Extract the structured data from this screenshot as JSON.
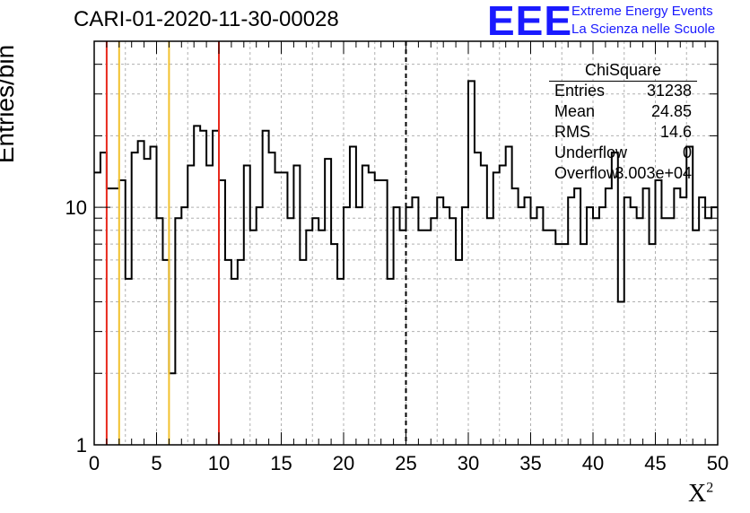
{
  "header": {
    "title": "CARI-01-2020-11-30-00028",
    "logo_mark": "EEE",
    "logo_line1": "Extreme Energy Events",
    "logo_line2": "La Scienza nelle Scuole"
  },
  "colors": {
    "logo": "#1a1aff",
    "red_line": "#e8291c",
    "yellow_line": "#f2c12e",
    "histogram": "#000000",
    "grid": "#b0b0b0"
  },
  "stats": {
    "title": "ChiSquare",
    "rows": [
      {
        "key": "Entries",
        "value": "31238"
      },
      {
        "key": "Mean",
        "value": "24.85"
      },
      {
        "key": "RMS",
        "value": "14.6"
      },
      {
        "key": "Underflow",
        "value": "0"
      },
      {
        "key": "Overflow",
        "value": "3.003e+04"
      }
    ]
  },
  "chart_data": {
    "type": "histogram",
    "xlabel": "X",
    "xlabel_sup": "2",
    "ylabel": "Entries/bin",
    "xlim": [
      0,
      50
    ],
    "ylim": [
      1,
      50
    ],
    "yscale": "log",
    "grid": true,
    "bin_width": 0.5,
    "x_ticks": [
      "0",
      "5",
      "10",
      "15",
      "20",
      "25",
      "30",
      "35",
      "40",
      "45",
      "50"
    ],
    "x_tick_values": [
      0,
      5,
      10,
      15,
      20,
      25,
      30,
      35,
      40,
      45,
      50
    ],
    "y_ticks": [
      "1",
      "10"
    ],
    "y_tick_values": [
      1,
      10
    ],
    "values": [
      14,
      17,
      12,
      12,
      13,
      5,
      17,
      19,
      16,
      18,
      9,
      6,
      2,
      9,
      10,
      15,
      22,
      21,
      15,
      21,
      13,
      6,
      5,
      6,
      15,
      8,
      10,
      21,
      17,
      14,
      14,
      9,
      15,
      6,
      8,
      9,
      8,
      16,
      7,
      5,
      10,
      18,
      10,
      15,
      14,
      13,
      13,
      5,
      10,
      8,
      10,
      11,
      8,
      8,
      9,
      11,
      10,
      9,
      6,
      10,
      34,
      17,
      15,
      9,
      14,
      15,
      18,
      12,
      10,
      11,
      9,
      10,
      8,
      8,
      7,
      7,
      11,
      12,
      7,
      10,
      9,
      10,
      12,
      17,
      4,
      11,
      10,
      9,
      12,
      7,
      13,
      9,
      9,
      12,
      11,
      18,
      8,
      11,
      9,
      10
    ],
    "vertical_lines": [
      {
        "x": 1,
        "color": "red",
        "style": "solid"
      },
      {
        "x": 2,
        "color": "yellow",
        "style": "solid"
      },
      {
        "x": 6,
        "color": "yellow",
        "style": "solid"
      },
      {
        "x": 10,
        "color": "red",
        "style": "solid"
      },
      {
        "x": 25,
        "color": "black",
        "style": "dashed"
      }
    ]
  }
}
